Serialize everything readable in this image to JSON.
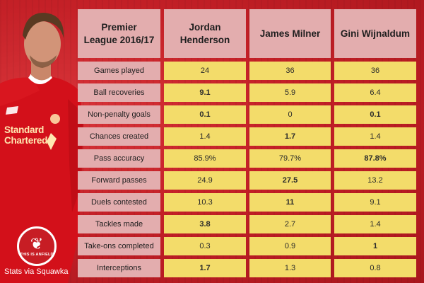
{
  "header": {
    "corner_line1": "Premier",
    "corner_line2": "League 2016/17",
    "players": [
      {
        "line1": "Jordan",
        "line2": "Henderson"
      },
      {
        "line1": "James Milner",
        "line2": ""
      },
      {
        "line1": "Gini Wijnaldum",
        "line2": ""
      }
    ]
  },
  "rows": [
    {
      "label": "Games played",
      "values": [
        "24",
        "36",
        "36"
      ],
      "bold": [
        false,
        false,
        false
      ]
    },
    {
      "label": "Ball recoveries",
      "values": [
        "9.1",
        "5.9",
        "6.4"
      ],
      "bold": [
        true,
        false,
        false
      ]
    },
    {
      "label": "Non-penalty goals",
      "values": [
        "0.1",
        "0",
        "0.1"
      ],
      "bold": [
        true,
        false,
        true
      ]
    },
    {
      "label": "Chances created",
      "values": [
        "1.4",
        "1.7",
        "1.4"
      ],
      "bold": [
        false,
        true,
        false
      ]
    },
    {
      "label": "Pass accuracy",
      "values": [
        "85.9%",
        "79.7%",
        "87.8%"
      ],
      "bold": [
        false,
        false,
        true
      ]
    },
    {
      "label": "Forward passes",
      "values": [
        "24.9",
        "27.5",
        "13.2"
      ],
      "bold": [
        false,
        true,
        false
      ]
    },
    {
      "label": "Duels contested",
      "values": [
        "10.3",
        "11",
        "9.1"
      ],
      "bold": [
        false,
        true,
        false
      ]
    },
    {
      "label": "Tackles made",
      "values": [
        "3.8",
        "2.7",
        "1.4"
      ],
      "bold": [
        true,
        false,
        false
      ]
    },
    {
      "label": "Take-ons completed",
      "values": [
        "0.3",
        "0.9",
        "1"
      ],
      "bold": [
        false,
        false,
        true
      ]
    },
    {
      "label": "Interceptions",
      "values": [
        "1.7",
        "1.3",
        "0.8"
      ],
      "bold": [
        true,
        false,
        false
      ]
    }
  ],
  "kit": {
    "sponsor_line1": "Standard",
    "sponsor_line2": "Chartered"
  },
  "badge": {
    "text": "THIS IS ANFIELD",
    "icon": "liverbird-icon"
  },
  "credit": "Stats via Squawka",
  "colors": {
    "background": "#c8222a",
    "header_cell": "#e3adae",
    "value_cell": "#f3dc6a",
    "kit_red": "#d3101a"
  }
}
